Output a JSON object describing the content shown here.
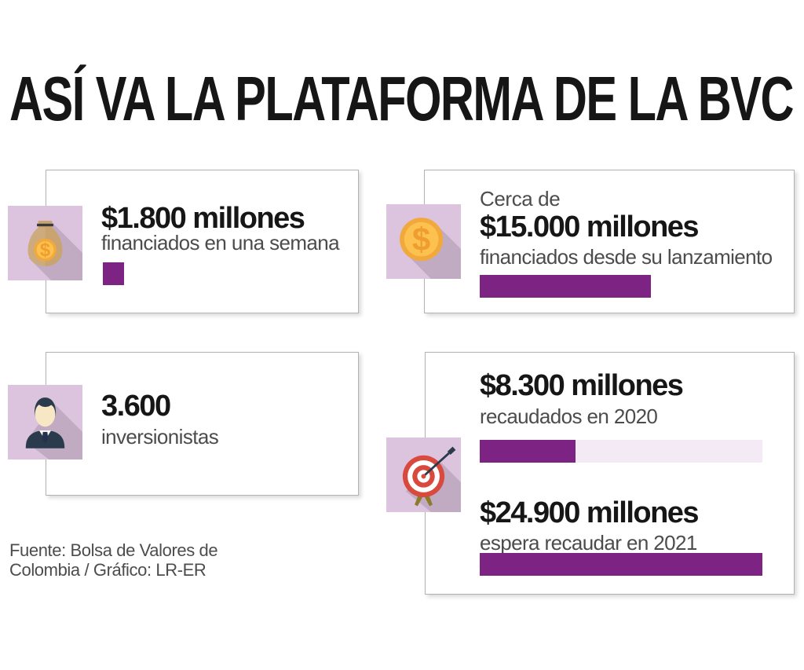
{
  "title": "ASÍ VA LA PLATAFORMA DE LA BVC",
  "cards": {
    "week": {
      "value": "$1.800 millones",
      "caption": "financiados en una semana",
      "bar_pct": 7.5,
      "icon": "money-bag-icon"
    },
    "launch": {
      "intro": "Cerca de",
      "value": "$15.000 millones",
      "caption": "financiados desde su lanzamiento",
      "bar_pct": 60.5,
      "icon": "dollar-coin-icon"
    },
    "investors": {
      "value": "3.600",
      "caption": "inversionistas",
      "icon": "businessman-icon"
    },
    "target": {
      "icon": "target-icon",
      "rows": [
        {
          "value": "$8.300 millones",
          "caption": "recaudados en 2020",
          "bar_pct": 34
        },
        {
          "value": "$24.900 millones",
          "caption": "espera recaudar en 2021",
          "bar_pct": 100
        }
      ]
    }
  },
  "footer": {
    "line1": "Fuente: Bolsa de Valores de",
    "line2": "Colombia / Gráfico: LR-ER"
  },
  "colors": {
    "accent_purple": "#7c2383",
    "icon_background": "#dcc3de",
    "bar_track": "#f3eaf5",
    "card_border": "#b2b2b2",
    "text_black": "#161616",
    "text_gray": "#4c4c4c",
    "coin_gold": "#f2a93b",
    "coin_gold_light": "#fcc14e",
    "bag_tan": "#c9a470",
    "target_red": "#d8493e",
    "suit_navy": "#2b3b4e"
  },
  "chart_data": {
    "type": "bar",
    "title": "ASÍ VA LA PLATAFORMA DE LA BVC",
    "categories": [
      "financiados en una semana",
      "financiados desde su lanzamiento",
      "recaudados en 2020",
      "espera recaudar en 2021"
    ],
    "values": [
      1800,
      15000,
      8300,
      24900
    ],
    "value_labels": [
      "$1.800 millones",
      "$15.000 millones",
      "$8.300 millones",
      "$24.900 millones"
    ],
    "other_stats": {
      "inversionistas": 3600
    },
    "units": "millones de pesos (COP)",
    "xlim": [
      0,
      24900
    ],
    "note": "bar lengths drawn proportional to values, max scale 24.900",
    "source": "Fuente: Bolsa de Valores de Colombia / Gráfico: LR-ER"
  }
}
